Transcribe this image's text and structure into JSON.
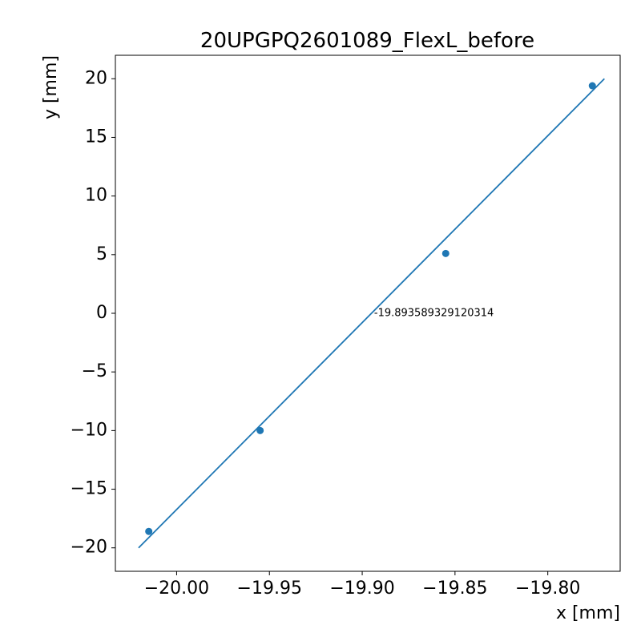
{
  "chart_data": {
    "type": "scatter",
    "title": "20UPGPQ2601089_FlexL_before",
    "xlabel": "x [mm]",
    "ylabel": "y [mm]",
    "xlim": [
      -20.033,
      -19.761
    ],
    "ylim": [
      -22,
      22
    ],
    "xticks": [
      -20.0,
      -19.95,
      -19.9,
      -19.85,
      -19.8
    ],
    "xtick_labels": [
      "−20.00",
      "−19.95",
      "−19.90",
      "−19.85",
      "−19.80"
    ],
    "yticks": [
      -20,
      -15,
      -10,
      -5,
      0,
      5,
      10,
      15,
      20
    ],
    "ytick_labels": [
      "−20",
      "−15",
      "−10",
      "−5",
      "0",
      "5",
      "10",
      "15",
      "20"
    ],
    "grid": false,
    "colors": {
      "series": "#1f77b4",
      "axes": "#000000"
    },
    "points": [
      {
        "x": -20.015,
        "y": -18.6
      },
      {
        "x": -19.955,
        "y": -10.0
      },
      {
        "x": -19.855,
        "y": 5.1
      },
      {
        "x": -19.776,
        "y": 19.4
      }
    ],
    "fit_line": [
      {
        "x": -20.0205,
        "y": -20
      },
      {
        "x": -19.7695,
        "y": 20
      }
    ],
    "annotation": {
      "text": "-19.893589329120314",
      "x": -19.8936,
      "y": 0
    }
  }
}
